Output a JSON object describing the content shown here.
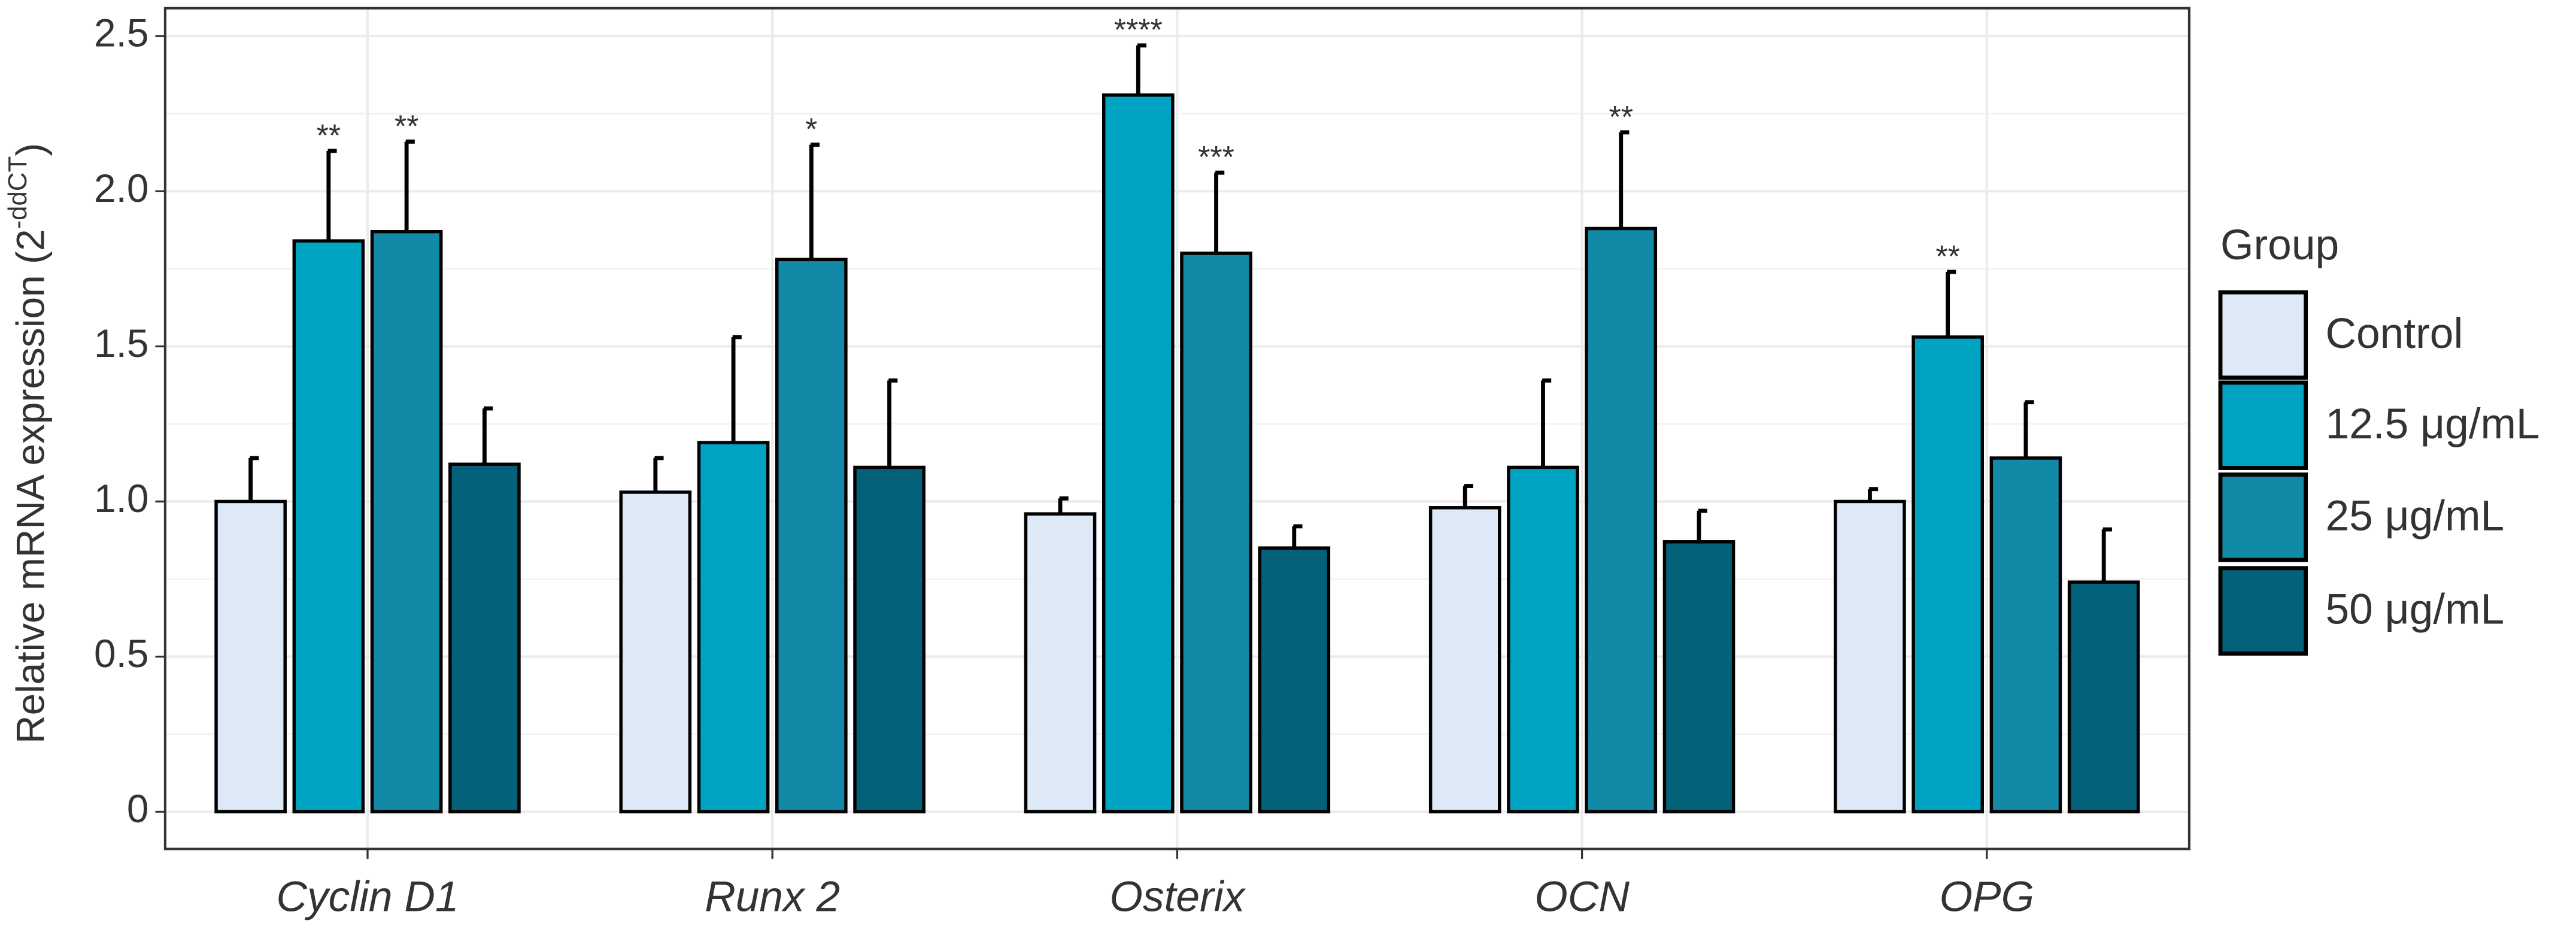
{
  "chart_data": {
    "type": "bar",
    "ylabel": "Relative mRNA expression (2",
    "ylabel_superscript": "-ddCT",
    "ylabel_suffix": ")",
    "categories": [
      "Cyclin D1",
      "Runx 2",
      "Osterix",
      "OCN",
      "OPG"
    ],
    "legend_title": "Group",
    "legend_position": "right",
    "grid": true,
    "ylim": [
      -0.12,
      2.59
    ],
    "yticks": [
      0,
      0.5,
      {
        "value": 1,
        "label": "1.0"
      },
      1.5,
      {
        "value": 2,
        "label": "2.0"
      },
      2.5
    ],
    "series": [
      {
        "name": "Control",
        "color": "#dde9f7",
        "values": [
          1.0,
          1.03,
          0.96,
          0.98,
          1.0
        ],
        "errors": [
          0.14,
          0.11,
          0.05,
          0.07,
          0.04
        ],
        "annotations": [
          null,
          null,
          null,
          null,
          null
        ]
      },
      {
        "name": "12.5 μg/mL",
        "color": "#00a3c2",
        "values": [
          1.84,
          1.19,
          2.31,
          1.11,
          1.53
        ],
        "errors": [
          0.29,
          0.34,
          0.16,
          0.28,
          0.21
        ],
        "annotations": [
          "**",
          null,
          "****",
          null,
          "**"
        ]
      },
      {
        "name": "25 μg/mL",
        "color": "#1389a8",
        "values": [
          1.87,
          1.78,
          1.8,
          1.88,
          1.14
        ],
        "errors": [
          0.29,
          0.37,
          0.26,
          0.31,
          0.18
        ],
        "annotations": [
          "**",
          "*",
          "***",
          "**",
          null
        ]
      },
      {
        "name": "50 μg/mL",
        "color": "#03617a",
        "values": [
          1.12,
          1.11,
          0.85,
          0.87,
          0.74
        ],
        "errors": [
          0.18,
          0.28,
          0.07,
          0.1,
          0.17
        ],
        "annotations": [
          null,
          null,
          null,
          null,
          null
        ]
      }
    ]
  }
}
